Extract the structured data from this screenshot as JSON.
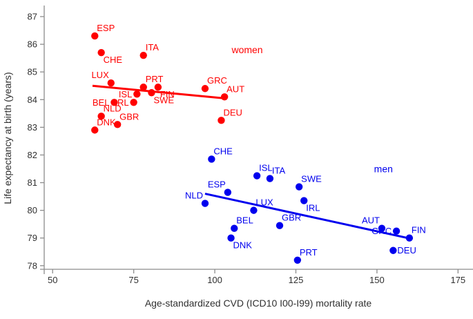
{
  "chart_data": {
    "type": "scatter",
    "title": "",
    "xlabel": "Age-standardized CVD (ICD10 I00-I99) mortality rate",
    "ylabel": "Life expectancy at birth (years)",
    "xlim": [
      47.4,
      179.4
    ],
    "ylim": [
      77.87,
      87.35
    ],
    "x_ticks": [
      50,
      75,
      100,
      125,
      150,
      175
    ],
    "y_ticks": [
      78,
      79,
      80,
      81,
      82,
      83,
      84,
      85,
      86,
      87
    ],
    "grid": false,
    "legend_position": "none",
    "axis_color": "#8c8c8c",
    "tick_label_color": "#303030",
    "series": [
      {
        "name": "women",
        "color": "#ff0000",
        "annotation": {
          "text": "women",
          "x": 110,
          "y": 85.8
        },
        "trendline": {
          "x1": 62.3,
          "y1": 84.5,
          "x2": 102.7,
          "y2": 84.05
        },
        "points": [
          {
            "label": "ESP",
            "x": 63,
            "y": 86.3,
            "pos": "ne"
          },
          {
            "label": "CHE",
            "x": 65,
            "y": 85.7,
            "pos": "se"
          },
          {
            "label": "ITA",
            "x": 78,
            "y": 85.6,
            "pos": "ne"
          },
          {
            "label": "LUX",
            "x": 68,
            "y": 84.6,
            "pos": "nw"
          },
          {
            "label": "PRT",
            "x": 78,
            "y": 84.45,
            "pos": "ne"
          },
          {
            "label": "FIN",
            "x": 82.5,
            "y": 84.45,
            "pos": "se"
          },
          {
            "label": "SWE",
            "x": 80.5,
            "y": 84.25,
            "pos": "se"
          },
          {
            "label": "ISL",
            "x": 76,
            "y": 84.2,
            "pos": "w"
          },
          {
            "label": "GRC",
            "x": 97,
            "y": 84.4,
            "pos": "ne"
          },
          {
            "label": "AUT",
            "x": 103,
            "y": 84.1,
            "pos": "ne"
          },
          {
            "label": "BEL",
            "x": 69,
            "y": 83.9,
            "pos": "w"
          },
          {
            "label": "IRL",
            "x": 75,
            "y": 83.9,
            "pos": "w"
          },
          {
            "label": "NLD",
            "x": 65,
            "y": 83.4,
            "pos": "ne"
          },
          {
            "label": "DEU",
            "x": 102,
            "y": 83.25,
            "pos": "ne"
          },
          {
            "label": "GBR",
            "x": 70,
            "y": 83.1,
            "pos": "ne"
          },
          {
            "label": "DNK",
            "x": 63,
            "y": 82.9,
            "pos": "ne"
          }
        ]
      },
      {
        "name": "men",
        "color": "#0000ee",
        "annotation": {
          "text": "men",
          "x": 152,
          "y": 81.5
        },
        "trendline": {
          "x1": 97,
          "y1": 80.6,
          "x2": 160.7,
          "y2": 78.97
        },
        "points": [
          {
            "label": "CHE",
            "x": 99,
            "y": 81.85,
            "pos": "ne"
          },
          {
            "label": "ISL",
            "x": 113,
            "y": 81.25,
            "pos": "ne"
          },
          {
            "label": "ITA",
            "x": 117,
            "y": 81.15,
            "pos": "ne"
          },
          {
            "label": "SWE",
            "x": 126,
            "y": 80.85,
            "pos": "ne"
          },
          {
            "label": "ESP",
            "x": 104,
            "y": 80.65,
            "pos": "nw"
          },
          {
            "label": "IRL",
            "x": 127.5,
            "y": 80.35,
            "pos": "se"
          },
          {
            "label": "NLD",
            "x": 97,
            "y": 80.25,
            "pos": "nw"
          },
          {
            "label": "LUX",
            "x": 112,
            "y": 80.0,
            "pos": "ne"
          },
          {
            "label": "GBR",
            "x": 120,
            "y": 79.45,
            "pos": "ne"
          },
          {
            "label": "BEL",
            "x": 106,
            "y": 79.35,
            "pos": "ne"
          },
          {
            "label": "AUT",
            "x": 151.5,
            "y": 79.35,
            "pos": "nw"
          },
          {
            "label": "GRC",
            "x": 156,
            "y": 79.25,
            "pos": "w"
          },
          {
            "label": "FIN",
            "x": 160,
            "y": 79.0,
            "pos": "ne"
          },
          {
            "label": "DNK",
            "x": 105,
            "y": 79.0,
            "pos": "se"
          },
          {
            "label": "DEU",
            "x": 155,
            "y": 78.55,
            "pos": "e"
          },
          {
            "label": "PRT",
            "x": 125.5,
            "y": 78.2,
            "pos": "ne"
          }
        ]
      }
    ]
  }
}
